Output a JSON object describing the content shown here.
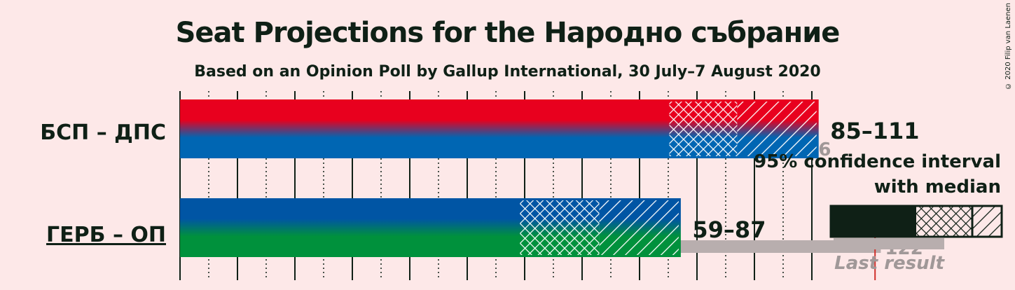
{
  "title": "Seat Projections for the Народно събрание",
  "subtitle": "Based on an Opinion Poll by Gallup International, 30 July–7 August 2020",
  "copyright": "© 2020 Filip van Laenen",
  "chart_data": {
    "type": "bar",
    "orientation": "horizontal",
    "x_range": [
      0,
      122
    ],
    "tick_step": 10,
    "parties": [
      {
        "label": "БСП – ДПС",
        "range_label": "85–111",
        "low": 85,
        "median": 97,
        "high": 111,
        "last_result": 106,
        "last_result_label": "106",
        "colors": [
          "#e8001e",
          "#0066b3"
        ],
        "underlined": false
      },
      {
        "label": "ГЕРБ – ОП",
        "range_label": "59–87",
        "low": 59,
        "median": 73,
        "high": 87,
        "last_result": 122,
        "last_result_label": "122",
        "colors": [
          "#0055a4",
          "#00913c"
        ],
        "underlined": true
      }
    ],
    "majority_line": 121
  },
  "legend": {
    "line1": "95% confidence interval",
    "line2": "with median",
    "last_result": "Last result"
  },
  "colors": {
    "background": "#fde8e8",
    "text": "#0f2016",
    "last_result_bar": "#b8aeae",
    "majority_line": "#d0302a"
  }
}
